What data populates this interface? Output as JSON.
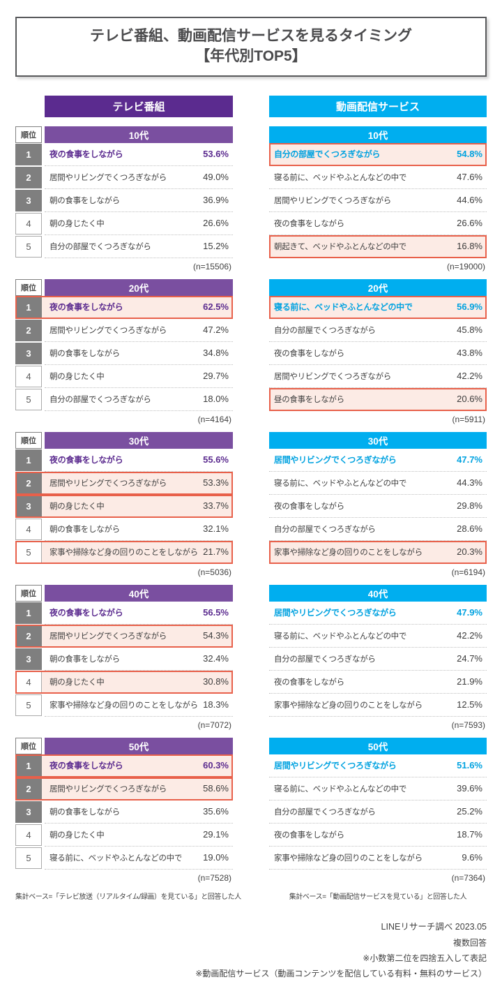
{
  "title": {
    "line1": "テレビ番組、動画配信サービスを見るタイミング",
    "line2": "【年代別TOP5】"
  },
  "rank_header": "順位",
  "footer_notes": [
    "LINEリサーチ調べ 2023.05",
    "複数回答",
    "※小数第二位を四捨五入して表記",
    "※動画配信サービス（動画コンテンツを配信している有料・無料のサービス）"
  ],
  "colors": {
    "tv_header": "#5b2b8f",
    "tv_age_header": "#7a4fa0",
    "tv_accent": "#5b2b8f",
    "video_header": "#00aeef",
    "video_age_header": "#00aeef",
    "video_accent": "#00a2e0",
    "rank_top_bg": "#7f7f7f",
    "highlight_border": "#e8604a",
    "highlight_bg": "#fcebe5",
    "text_dark": "#404040"
  },
  "chart_data": {
    "type": "table",
    "title": "テレビ番組、動画配信サービスを見るタイミング【年代別TOP5】",
    "value_unit": "%",
    "columns": [
      {
        "id": "tv",
        "label": "テレビ番組",
        "show_rank_column": true,
        "base_note": "集計ベース=「テレビ放送（リアルタイム/録画）を見ている」と回答した人",
        "groups": [
          {
            "age": "10代",
            "n": 15506,
            "rows": [
              {
                "rank": 1,
                "label": "夜の食事をしながら",
                "value": 53.6,
                "highlight": false
              },
              {
                "rank": 2,
                "label": "居間やリビングでくつろぎながら",
                "value": 49.0,
                "highlight": false
              },
              {
                "rank": 3,
                "label": "朝の食事をしながら",
                "value": 36.9,
                "highlight": false
              },
              {
                "rank": 4,
                "label": "朝の身じたく中",
                "value": 26.6,
                "highlight": false
              },
              {
                "rank": 5,
                "label": "自分の部屋でくつろぎながら",
                "value": 15.2,
                "highlight": false
              }
            ]
          },
          {
            "age": "20代",
            "n": 4164,
            "rows": [
              {
                "rank": 1,
                "label": "夜の食事をしながら",
                "value": 62.5,
                "highlight": true
              },
              {
                "rank": 2,
                "label": "居間やリビングでくつろぎながら",
                "value": 47.2,
                "highlight": false
              },
              {
                "rank": 3,
                "label": "朝の食事をしながら",
                "value": 34.8,
                "highlight": false
              },
              {
                "rank": 4,
                "label": "朝の身じたく中",
                "value": 29.7,
                "highlight": false
              },
              {
                "rank": 5,
                "label": "自分の部屋でくつろぎながら",
                "value": 18.0,
                "highlight": false
              }
            ]
          },
          {
            "age": "30代",
            "n": 5036,
            "rows": [
              {
                "rank": 1,
                "label": "夜の食事をしながら",
                "value": 55.6,
                "highlight": false
              },
              {
                "rank": 2,
                "label": "居間やリビングでくつろぎながら",
                "value": 53.3,
                "highlight": true
              },
              {
                "rank": 3,
                "label": "朝の身じたく中",
                "value": 33.7,
                "highlight": true
              },
              {
                "rank": 4,
                "label": "朝の食事をしながら",
                "value": 32.1,
                "highlight": false
              },
              {
                "rank": 5,
                "label": "家事や掃除など身の回りのことをしながら",
                "value": 21.7,
                "highlight": true
              }
            ]
          },
          {
            "age": "40代",
            "n": 7072,
            "rows": [
              {
                "rank": 1,
                "label": "夜の食事をしながら",
                "value": 56.5,
                "highlight": false
              },
              {
                "rank": 2,
                "label": "居間やリビングでくつろぎながら",
                "value": 54.3,
                "highlight": true
              },
              {
                "rank": 3,
                "label": "朝の食事をしながら",
                "value": 32.4,
                "highlight": false
              },
              {
                "rank": 4,
                "label": "朝の身じたく中",
                "value": 30.8,
                "highlight": true
              },
              {
                "rank": 5,
                "label": "家事や掃除など身の回りのことをしながら",
                "value": 18.3,
                "highlight": false
              }
            ]
          },
          {
            "age": "50代",
            "n": 7528,
            "rows": [
              {
                "rank": 1,
                "label": "夜の食事をしながら",
                "value": 60.3,
                "highlight": true
              },
              {
                "rank": 2,
                "label": "居間やリビングでくつろぎながら",
                "value": 58.6,
                "highlight": true
              },
              {
                "rank": 3,
                "label": "朝の食事をしながら",
                "value": 35.6,
                "highlight": false
              },
              {
                "rank": 4,
                "label": "朝の身じたく中",
                "value": 29.1,
                "highlight": false
              },
              {
                "rank": 5,
                "label": "寝る前に、ベッドやふとんなどの中で",
                "value": 19.0,
                "highlight": false
              }
            ]
          }
        ]
      },
      {
        "id": "video",
        "label": "動画配信サービス",
        "show_rank_column": false,
        "base_note": "集計ベース=「動画配信サービスを見ている」と回答した人",
        "groups": [
          {
            "age": "10代",
            "n": 19000,
            "rows": [
              {
                "rank": 1,
                "label": "自分の部屋でくつろぎながら",
                "value": 54.8,
                "highlight": true
              },
              {
                "rank": 2,
                "label": "寝る前に、ベッドやふとんなどの中で",
                "value": 47.6,
                "highlight": false
              },
              {
                "rank": 3,
                "label": "居間やリビングでくつろぎながら",
                "value": 44.6,
                "highlight": false
              },
              {
                "rank": 4,
                "label": "夜の食事をしながら",
                "value": 26.6,
                "highlight": false
              },
              {
                "rank": 5,
                "label": "朝起きて、ベッドやふとんなどの中で",
                "value": 16.8,
                "highlight": true
              }
            ]
          },
          {
            "age": "20代",
            "n": 5911,
            "rows": [
              {
                "rank": 1,
                "label": "寝る前に、ベッドやふとんなどの中で",
                "value": 56.9,
                "highlight": true
              },
              {
                "rank": 2,
                "label": "自分の部屋でくつろぎながら",
                "value": 45.8,
                "highlight": false
              },
              {
                "rank": 3,
                "label": "夜の食事をしながら",
                "value": 43.8,
                "highlight": false
              },
              {
                "rank": 4,
                "label": "居間やリビングでくつろぎながら",
                "value": 42.2,
                "highlight": false
              },
              {
                "rank": 5,
                "label": "昼の食事をしながら",
                "value": 20.6,
                "highlight": true
              }
            ]
          },
          {
            "age": "30代",
            "n": 6194,
            "rows": [
              {
                "rank": 1,
                "label": "居間やリビングでくつろぎながら",
                "value": 47.7,
                "highlight": false
              },
              {
                "rank": 2,
                "label": "寝る前に、ベッドやふとんなどの中で",
                "value": 44.3,
                "highlight": false
              },
              {
                "rank": 3,
                "label": "夜の食事をしながら",
                "value": 29.8,
                "highlight": false
              },
              {
                "rank": 4,
                "label": "自分の部屋でくつろぎながら",
                "value": 28.6,
                "highlight": false
              },
              {
                "rank": 5,
                "label": "家事や掃除など身の回りのことをしながら",
                "value": 20.3,
                "highlight": true
              }
            ]
          },
          {
            "age": "40代",
            "n": 7593,
            "rows": [
              {
                "rank": 1,
                "label": "居間やリビングでくつろぎながら",
                "value": 47.9,
                "highlight": false
              },
              {
                "rank": 2,
                "label": "寝る前に、ベッドやふとんなどの中で",
                "value": 42.2,
                "highlight": false
              },
              {
                "rank": 3,
                "label": "自分の部屋でくつろぎながら",
                "value": 24.7,
                "highlight": false
              },
              {
                "rank": 4,
                "label": "夜の食事をしながら",
                "value": 21.9,
                "highlight": false
              },
              {
                "rank": 5,
                "label": "家事や掃除など身の回りのことをしながら",
                "value": 12.5,
                "highlight": false
              }
            ]
          },
          {
            "age": "50代",
            "n": 7364,
            "rows": [
              {
                "rank": 1,
                "label": "居間やリビングでくつろぎながら",
                "value": 51.6,
                "highlight": false
              },
              {
                "rank": 2,
                "label": "寝る前に、ベッドやふとんなどの中で",
                "value": 39.6,
                "highlight": false
              },
              {
                "rank": 3,
                "label": "自分の部屋でくつろぎながら",
                "value": 25.2,
                "highlight": false
              },
              {
                "rank": 4,
                "label": "夜の食事をしながら",
                "value": 18.7,
                "highlight": false
              },
              {
                "rank": 5,
                "label": "家事や掃除など身の回りのことをしながら",
                "value": 9.6,
                "highlight": false
              }
            ]
          }
        ]
      }
    ]
  }
}
